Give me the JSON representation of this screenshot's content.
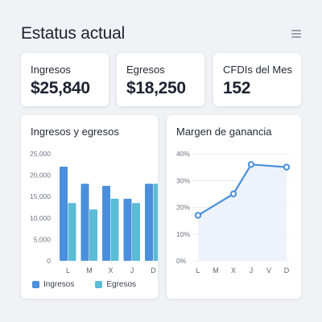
{
  "header": {
    "title": "Estatus actual",
    "menu_icon": "hamburger-menu-icon"
  },
  "kpis": [
    {
      "label": "Ingresos",
      "value": "$25,840"
    },
    {
      "label": "Egresos",
      "value": "$18,250"
    },
    {
      "label": "CFDIs del Mes",
      "value": "152"
    }
  ],
  "colors": {
    "ingresos": "#4a8fdc",
    "egresos": "#5bbcd6",
    "line": "#4a8fdc"
  },
  "chart_data": [
    {
      "type": "bar",
      "title": "Ingresos y egresos",
      "categories": [
        "L",
        "M",
        "X",
        "J",
        "D"
      ],
      "series": [
        {
          "name": "Ingresos",
          "values": [
            22000,
            18000,
            17500,
            14500,
            18000
          ]
        },
        {
          "name": "Egresos",
          "values": [
            13500,
            12000,
            14500,
            13500,
            18000
          ]
        }
      ],
      "ylim": [
        0,
        25000
      ],
      "yticks": [
        "25,000",
        "20,000",
        "15,000",
        "10,000",
        "5,000",
        "0"
      ],
      "legend": "bottom-left"
    },
    {
      "type": "line",
      "title": "Margen de ganancia",
      "categories": [
        "L",
        "M",
        "X",
        "J",
        "V",
        "D"
      ],
      "series": [
        {
          "values": [
            17,
            null,
            25,
            36,
            null,
            35
          ]
        }
      ],
      "ylim": [
        0,
        40
      ],
      "yticks": [
        "40%",
        "30%",
        "20%",
        "10%",
        "0%"
      ],
      "grid": true
    }
  ]
}
